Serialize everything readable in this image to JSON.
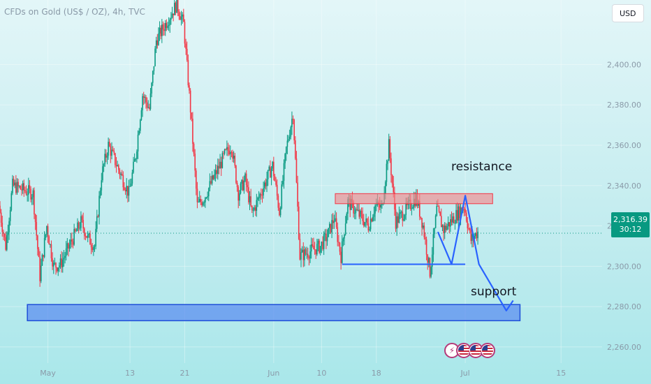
{
  "header": {
    "title": "CFDs on Gold (US$ / OZ), 4h, TVC",
    "currency": "USD"
  },
  "price_badge": {
    "price": "2,316.39",
    "countdown": "30:12"
  },
  "annotations": {
    "resistance_label": "resistance",
    "support_label": "support"
  },
  "events": {
    "icons": [
      "lightning-icon",
      "us-flag-icon",
      "us-flag-icon",
      "us-flag-icon"
    ]
  },
  "colors": {
    "up": "#089981",
    "down": "#f23645",
    "resistance_zone": "#f28b8e",
    "support_zone": "#5e8ff0",
    "projection": "#2962ff",
    "badge": "#089981"
  },
  "chart_data": {
    "type": "candlestick",
    "title": "CFDs on Gold (US$ / OZ), 4h, TVC",
    "y_ticks": [
      "2,260.00",
      "2,280.00",
      "2,300.00",
      "2,320.00",
      "2,340.00",
      "2,360.00",
      "2,380.00",
      "2,400.00"
    ],
    "y_tick_values": [
      2260,
      2280,
      2300,
      2320,
      2340,
      2360,
      2380,
      2400
    ],
    "ylim": [
      2252,
      2432
    ],
    "x_ticks": [
      "May",
      "13",
      "21",
      "Jun",
      "10",
      "18",
      "Jul",
      "15"
    ],
    "x_tick_dates": [
      "2024-05-01",
      "2024-05-13",
      "2024-05-21",
      "2024-06-03",
      "2024-06-10",
      "2024-06-18",
      "2024-07-01",
      "2024-07-15"
    ],
    "xlim": [
      "2024-04-24",
      "2024-07-21"
    ],
    "current_price": 2316.39,
    "series_path": [
      [
        "2024-04-24",
        2330
      ],
      [
        "2024-04-25",
        2310
      ],
      [
        "2024-04-26",
        2340
      ],
      [
        "2024-04-29",
        2336
      ],
      [
        "2024-04-30",
        2295
      ],
      [
        "2024-05-01",
        2320
      ],
      [
        "2024-05-02",
        2300
      ],
      [
        "2024-05-03",
        2301
      ],
      [
        "2024-05-06",
        2322
      ],
      [
        "2024-05-07",
        2314
      ],
      [
        "2024-05-08",
        2310
      ],
      [
        "2024-05-09",
        2345
      ],
      [
        "2024-05-10",
        2360
      ],
      [
        "2024-05-13",
        2336
      ],
      [
        "2024-05-14",
        2355
      ],
      [
        "2024-05-15",
        2385
      ],
      [
        "2024-05-16",
        2378
      ],
      [
        "2024-05-17",
        2412
      ],
      [
        "2024-05-20",
        2430
      ],
      [
        "2024-05-21",
        2420
      ],
      [
        "2024-05-22",
        2378
      ],
      [
        "2024-05-23",
        2330
      ],
      [
        "2024-05-24",
        2334
      ],
      [
        "2024-05-27",
        2355
      ],
      [
        "2024-05-28",
        2360
      ],
      [
        "2024-05-29",
        2336
      ],
      [
        "2024-05-30",
        2343
      ],
      [
        "2024-05-31",
        2326
      ],
      [
        "2024-06-03",
        2350
      ],
      [
        "2024-06-04",
        2327
      ],
      [
        "2024-06-05",
        2358
      ],
      [
        "2024-06-06",
        2376
      ],
      [
        "2024-06-07",
        2305
      ],
      [
        "2024-06-10",
        2310
      ],
      [
        "2024-06-11",
        2315
      ],
      [
        "2024-06-12",
        2324
      ],
      [
        "2024-06-13",
        2305
      ],
      [
        "2024-06-14",
        2332
      ],
      [
        "2024-06-17",
        2320
      ],
      [
        "2024-06-18",
        2330
      ],
      [
        "2024-06-19",
        2329
      ],
      [
        "2024-06-20",
        2360
      ],
      [
        "2024-06-21",
        2322
      ],
      [
        "2024-06-24",
        2334
      ],
      [
        "2024-06-25",
        2320
      ],
      [
        "2024-06-26",
        2297
      ],
      [
        "2024-06-27",
        2328
      ],
      [
        "2024-06-28",
        2318
      ],
      [
        "2024-07-01",
        2330
      ],
      [
        "2024-07-02",
        2313
      ],
      [
        "2024-07-03",
        2317
      ]
    ],
    "resistance_zone": {
      "from": "2024-06-12",
      "to": "2024-07-05",
      "low": 2331,
      "high": 2336
    },
    "support_zone": {
      "from": "2024-04-28",
      "to": "2024-07-09",
      "low": 2273,
      "high": 2281
    },
    "support_level_line": {
      "from": "2024-06-13",
      "to": "2024-07-01",
      "price": 2301
    },
    "projection_path": [
      [
        "2024-06-27",
        2317
      ],
      [
        "2024-06-29",
        2301
      ],
      [
        "2024-07-01",
        2335
      ],
      [
        "2024-07-03",
        2301
      ],
      [
        "2024-07-07",
        2278
      ],
      [
        "2024-07-08",
        2283
      ]
    ]
  }
}
